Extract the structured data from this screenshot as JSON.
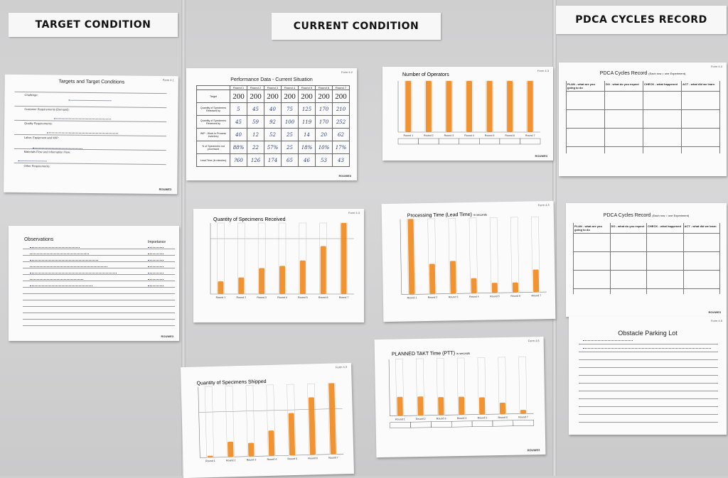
{
  "board": {
    "headers": {
      "target": "TARGET CONDITION",
      "current": "CURRENT CONDITION",
      "pdca": "PDCA CYCLES RECORD"
    }
  },
  "colors": {
    "marker": "#f08a1e",
    "ink": "#2b3a78"
  },
  "target_sheet": {
    "title": "Targets and Target Conditions",
    "form_no": "Form 4.1",
    "rows": [
      "Challenge:",
      "Customer Requirements (Demand):",
      "Quality Requirements:",
      "Labor, Equipment and WIP:",
      "Materials Flow and Information Flow:",
      "Other Requirements:"
    ],
    "footer": "ROUWE3"
  },
  "observations_sheet": {
    "title": "Observations",
    "importance": "Importance",
    "footer": "ROUWE3"
  },
  "performance_sheet": {
    "title": "Performance Data - Current Situation",
    "form_no": "Form 4.2",
    "rounds": [
      "Round 1",
      "Round 2",
      "Round 3",
      "Round 4",
      "Round 5",
      "Round 6",
      "Round 7"
    ],
    "rows": [
      {
        "label": "Target",
        "values": [
          "200",
          "200",
          "200",
          "200",
          "200",
          "200",
          "200"
        ]
      },
      {
        "label": "Quantity of Specimens Released by",
        "values": [
          "5",
          "45",
          "40",
          "75",
          "125",
          "170",
          "210"
        ]
      },
      {
        "label": "Quantity of Specimens Received by",
        "values": [
          "45",
          "59",
          "92",
          "100",
          "119",
          "170",
          "252"
        ]
      },
      {
        "label": "WIP - Work In Process Inventory",
        "values": [
          "40",
          "12",
          "52",
          "25",
          "14",
          "20",
          "62"
        ]
      },
      {
        "label": "% of Specimens not processed",
        "values": [
          "88%",
          "22",
          "57%",
          "25",
          "18%",
          "10%",
          "17%"
        ]
      },
      {
        "label": "Lead Time (in minutes)",
        "values": [
          "?60",
          "126",
          "174",
          "65",
          "46",
          "53",
          "43"
        ]
      }
    ],
    "footer": "ROUWE3"
  },
  "operators_chart": {
    "title": "Number of Operators",
    "form_no": "Form 4.3",
    "categories": [
      "Round 1",
      "Round 2",
      "Round 3",
      "Round 4",
      "Round 5",
      "Round 6",
      "Round 7"
    ],
    "footer": "ROUWE3"
  },
  "pdca_sheet_1": {
    "title": "PDCA Cycles Record",
    "subtitle": "(Each row = one Experiment)",
    "form_no": "Form 4.4",
    "cols": [
      "PLAN - what are you going to do",
      "DO - what do you expect",
      "CHECK - what happened",
      "ACT - what did we learn"
    ],
    "footer": "ROUWE3"
  },
  "received_chart": {
    "title": "Quantity of Specimens Received",
    "form_no": "Form 4.3",
    "categories": [
      "Round 1",
      "Round 2",
      "Round 3",
      "Round 4",
      "Round 5",
      "Round 6",
      "Round 7"
    ],
    "footer": "ROUWE3"
  },
  "processing_chart": {
    "title": "Processing Time (Lead Time)",
    "unit": "in seconds",
    "form_no": "Form 4.3",
    "categories": [
      "Round 1",
      "Round 2",
      "Round 3",
      "Round 4",
      "Round 5",
      "Round 6",
      "Round 7"
    ],
    "footer": "ROUWE3"
  },
  "pdca_sheet_2": {
    "title": "PDCA Cycles Record",
    "subtitle": "(Each row = one Experiment)",
    "cols": [
      "PLAN - what are you going to do",
      "DO - what do you expect",
      "CHECK - what happened",
      "ACT - what did we learn"
    ],
    "footer": "ROUWE3"
  },
  "shipped_chart": {
    "title": "Quantity of Specimens Shipped",
    "form_no": "Form 4.3",
    "categories": [
      "Round 1",
      "Round 2",
      "Round 3",
      "Round 4",
      "Round 5",
      "Round 6",
      "Round 7"
    ],
    "footer": "ROUWE3"
  },
  "takt_chart": {
    "title": "PLANNED TAKT Time (PTT)",
    "unit": "in seconds",
    "form_no": "Form 4.6",
    "categories": [
      "Round 1",
      "Round 2",
      "Round 3",
      "Round 4",
      "Round 5",
      "Round 6",
      "Round 7"
    ],
    "footer": "ROUWE3"
  },
  "obstacle_sheet": {
    "title": "Obstacle Parking Lot",
    "form_no": "Form 4.5"
  },
  "chart_data": [
    {
      "type": "bar",
      "title": "Number of Operators",
      "categories": [
        "Round 1",
        "Round 2",
        "Round 3",
        "Round 4",
        "Round 5",
        "Round 6",
        "Round 7"
      ],
      "values": [
        1,
        1,
        1,
        1,
        1,
        1,
        1
      ]
    },
    {
      "type": "bar",
      "title": "Quantity of Specimens Received",
      "categories": [
        "Round 1",
        "Round 2",
        "Round 3",
        "Round 4",
        "Round 5",
        "Round 6",
        "Round 7"
      ],
      "values": [
        45,
        59,
        92,
        100,
        119,
        170,
        252
      ]
    },
    {
      "type": "bar",
      "title": "Processing Time (Lead Time)",
      "categories": [
        "Round 1",
        "Round 2",
        "Round 3",
        "Round 4",
        "Round 5",
        "Round 6",
        "Round 7"
      ],
      "values": [
        300,
        120,
        130,
        60,
        40,
        40,
        90
      ]
    },
    {
      "type": "bar",
      "title": "Quantity of Specimens Shipped",
      "categories": [
        "Round 1",
        "Round 2",
        "Round 3",
        "Round 4",
        "Round 5",
        "Round 6",
        "Round 7"
      ],
      "values": [
        5,
        45,
        40,
        75,
        125,
        170,
        210
      ]
    },
    {
      "type": "bar",
      "title": "PLANNED TAKT Time (PTT)",
      "categories": [
        "Round 1",
        "Round 2",
        "Round 3",
        "Round 4",
        "Round 5",
        "Round 6",
        "Round 7"
      ],
      "values": [
        40,
        40,
        38,
        38,
        36,
        24,
        8
      ]
    }
  ]
}
